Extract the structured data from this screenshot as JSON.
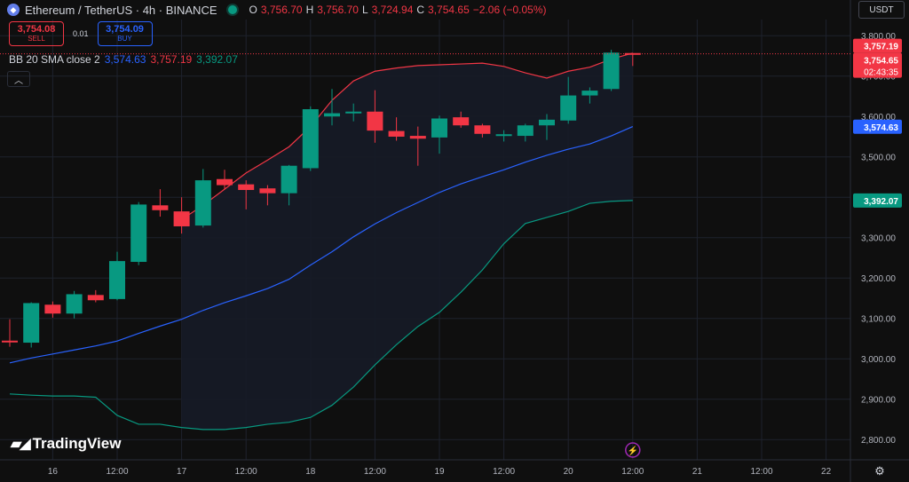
{
  "header": {
    "title": "Ethereum / TetherUS · 4h · BINANCE",
    "coin_icon": "ethereum-icon",
    "open_label": "O",
    "open_value": "3,756.70",
    "high_label": "H",
    "high_value": "3,756.70",
    "low_label": "L",
    "low_value": "3,724.94",
    "close_label": "C",
    "close_value": "3,754.65",
    "change": "−2.06 (−0.05%)"
  },
  "trade": {
    "sell_price": "3,754.08",
    "sell_label": "SELL",
    "spread": "0.01",
    "buy_price": "3,754.09",
    "buy_label": "BUY"
  },
  "indicator": {
    "name": "BB 20 SMA close 2",
    "basis": "3,574.63",
    "upper": "3,757.19",
    "lower": "3,392.07"
  },
  "currency": "USDT",
  "logo_text": "TradingView",
  "colors": {
    "background": "#0f0f0f",
    "up": "#089981",
    "down": "#f23645",
    "basis": "#2962ff",
    "upper": "#f23645",
    "lower": "#089981",
    "band_fill": "#161b27",
    "grid": "#1e222d"
  },
  "chart_data": {
    "type": "candlestick",
    "ylim": [
      2750,
      3840
    ],
    "y_ticks": [
      2800,
      2900,
      3000,
      3100,
      3200,
      3300,
      3400,
      3500,
      3600,
      3700,
      3800
    ],
    "y_tick_labels": [
      "2,800.00",
      "2,900.00",
      "3,000.00",
      "3,100.00",
      "3,200.00",
      "3,300.00",
      "3,400.00",
      "3,500.00",
      "3,600.00",
      "3,700.00",
      "3,800.00"
    ],
    "x_labels": [
      "16",
      "12:00",
      "17",
      "12:00",
      "18",
      "12:00",
      "19",
      "12:00",
      "20",
      "12:00",
      "21",
      "12:00",
      "22"
    ],
    "x_label_index": [
      2,
      5,
      8,
      11,
      14,
      17,
      20,
      23,
      26,
      29,
      32,
      35,
      38
    ],
    "last_index": 29,
    "candles": [
      {
        "o": 3045,
        "h": 3098,
        "l": 3030,
        "c": 3042
      },
      {
        "o": 3040,
        "h": 3140,
        "l": 3028,
        "c": 3138
      },
      {
        "o": 3134,
        "h": 3142,
        "l": 3102,
        "c": 3112
      },
      {
        "o": 3112,
        "h": 3168,
        "l": 3100,
        "c": 3160
      },
      {
        "o": 3158,
        "h": 3170,
        "l": 3140,
        "c": 3145
      },
      {
        "o": 3148,
        "h": 3265,
        "l": 3145,
        "c": 3242
      },
      {
        "o": 3240,
        "h": 3388,
        "l": 3232,
        "c": 3382
      },
      {
        "o": 3380,
        "h": 3420,
        "l": 3352,
        "c": 3368
      },
      {
        "o": 3365,
        "h": 3400,
        "l": 3310,
        "c": 3328
      },
      {
        "o": 3330,
        "h": 3470,
        "l": 3325,
        "c": 3442
      },
      {
        "o": 3445,
        "h": 3468,
        "l": 3420,
        "c": 3430
      },
      {
        "o": 3432,
        "h": 3442,
        "l": 3370,
        "c": 3418
      },
      {
        "o": 3422,
        "h": 3430,
        "l": 3380,
        "c": 3410
      },
      {
        "o": 3410,
        "h": 3480,
        "l": 3380,
        "c": 3478
      },
      {
        "o": 3472,
        "h": 3625,
        "l": 3465,
        "c": 3618
      },
      {
        "o": 3600,
        "h": 3668,
        "l": 3578,
        "c": 3608
      },
      {
        "o": 3608,
        "h": 3632,
        "l": 3588,
        "c": 3612
      },
      {
        "o": 3612,
        "h": 3665,
        "l": 3535,
        "c": 3565
      },
      {
        "o": 3564,
        "h": 3598,
        "l": 3540,
        "c": 3550
      },
      {
        "o": 3552,
        "h": 3575,
        "l": 3478,
        "c": 3545
      },
      {
        "o": 3548,
        "h": 3602,
        "l": 3508,
        "c": 3595
      },
      {
        "o": 3598,
        "h": 3612,
        "l": 3572,
        "c": 3578
      },
      {
        "o": 3578,
        "h": 3582,
        "l": 3548,
        "c": 3557
      },
      {
        "o": 3556,
        "h": 3566,
        "l": 3538,
        "c": 3556
      },
      {
        "o": 3552,
        "h": 3582,
        "l": 3538,
        "c": 3578
      },
      {
        "o": 3578,
        "h": 3606,
        "l": 3542,
        "c": 3592
      },
      {
        "o": 3590,
        "h": 3698,
        "l": 3582,
        "c": 3652
      },
      {
        "o": 3652,
        "h": 3672,
        "l": 3632,
        "c": 3664
      },
      {
        "o": 3668,
        "h": 3765,
        "l": 3663,
        "c": 3758
      },
      {
        "o": 3757,
        "h": 3757,
        "l": 3725,
        "c": 3755
      }
    ],
    "bb_upper": [
      null,
      null,
      null,
      null,
      null,
      null,
      null,
      null,
      3345,
      3380,
      3420,
      3460,
      3492,
      3525,
      3575,
      3640,
      3688,
      3712,
      3720,
      3726,
      3728,
      3730,
      3732,
      3724,
      3708,
      3695,
      3712,
      3722,
      3742,
      3757
    ],
    "bb_basis": [
      2990,
      3002,
      3012,
      3022,
      3032,
      3044,
      3063,
      3081,
      3098,
      3120,
      3139,
      3156,
      3174,
      3197,
      3232,
      3265,
      3302,
      3334,
      3362,
      3387,
      3412,
      3433,
      3451,
      3468,
      3487,
      3504,
      3519,
      3532,
      3552,
      3575
    ],
    "bb_lower": [
      2913,
      2910,
      2908,
      2908,
      2905,
      2860,
      2838,
      2838,
      2830,
      2825,
      2825,
      2830,
      2838,
      2843,
      2855,
      2885,
      2930,
      2985,
      3035,
      3080,
      3115,
      3165,
      3220,
      3285,
      3335,
      3350,
      3365,
      3385,
      3390,
      3392
    ],
    "price_labels": {
      "upper": "3,757.19",
      "last": "3,754.65",
      "countdown": "02:43:35",
      "basis": "3,574.63",
      "lower": "3,392.07"
    }
  }
}
